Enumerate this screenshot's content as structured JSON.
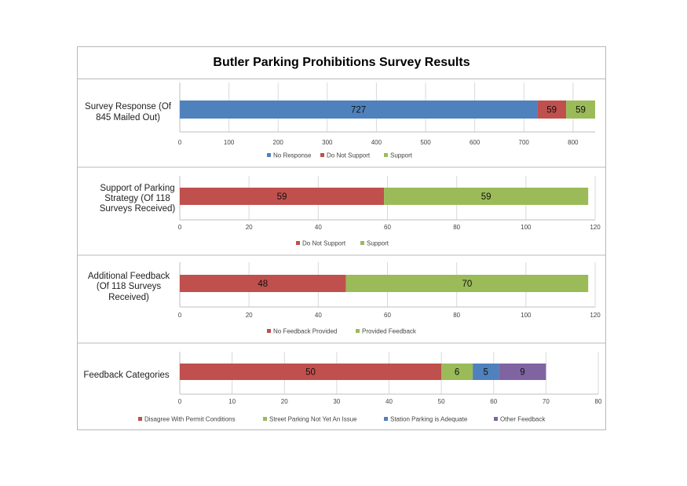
{
  "page_title": "Butler Parking Prohibitions Survey Results",
  "chart_data": [
    {
      "type": "bar",
      "orientation": "horizontal",
      "stacked": true,
      "category_label": "Survey Response (Of 845 Mailed Out)",
      "xlim": [
        0,
        845
      ],
      "ticks": [
        0,
        100,
        200,
        300,
        400,
        500,
        600,
        700,
        800
      ],
      "series": [
        {
          "name": "No Response",
          "value": 727,
          "color": "#4f81bd"
        },
        {
          "name": "Do Not Support",
          "value": 59,
          "color": "#c0504d"
        },
        {
          "name": "Support",
          "value": 59,
          "color": "#9bbb59"
        }
      ],
      "legend": "bottom",
      "grid": true
    },
    {
      "type": "bar",
      "orientation": "horizontal",
      "stacked": true,
      "category_label": "Support of Parking Strategy (Of 118 Surveys Received)",
      "xlim": [
        0,
        120
      ],
      "ticks": [
        0,
        20,
        40,
        60,
        80,
        100,
        120
      ],
      "series": [
        {
          "name": "Do Not Support",
          "value": 59,
          "color": "#c0504d"
        },
        {
          "name": "Support",
          "value": 59,
          "color": "#9bbb59"
        }
      ],
      "legend": "bottom",
      "grid": true
    },
    {
      "type": "bar",
      "orientation": "horizontal",
      "stacked": true,
      "category_label": "Additional Feedback (Of 118 Surveys Received)",
      "xlim": [
        0,
        120
      ],
      "ticks": [
        0,
        20,
        40,
        60,
        80,
        100,
        120
      ],
      "series": [
        {
          "name": "No Feedback Provided",
          "value": 48,
          "color": "#c0504d"
        },
        {
          "name": "Provided Feedback",
          "value": 70,
          "color": "#9bbb59"
        }
      ],
      "legend": "bottom",
      "grid": true
    },
    {
      "type": "bar",
      "orientation": "horizontal",
      "stacked": true,
      "category_label": "Feedback Categories",
      "xlim": [
        0,
        80
      ],
      "ticks": [
        0,
        10,
        20,
        30,
        40,
        50,
        60,
        70,
        80
      ],
      "series": [
        {
          "name": "Disagree With Permit Conditions",
          "value": 50,
          "color": "#c0504d"
        },
        {
          "name": "Street Parking Not Yet An Issue",
          "value": 6,
          "color": "#9bbb59"
        },
        {
          "name": "Station Parking is Adequate",
          "value": 5,
          "color": "#4f81bd"
        },
        {
          "name": "Other Feedback",
          "value": 9,
          "color": "#8064a2"
        }
      ],
      "legend": "bottom",
      "grid": true
    }
  ]
}
